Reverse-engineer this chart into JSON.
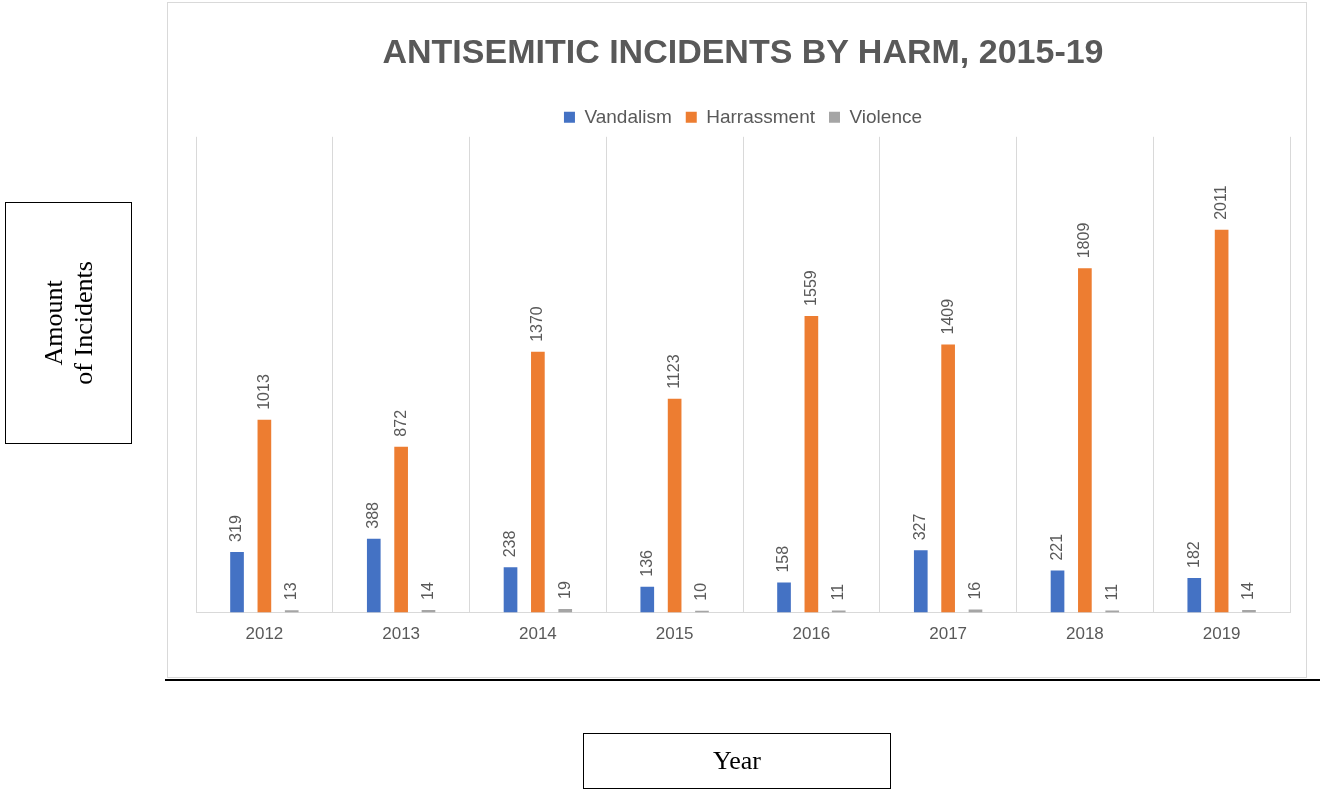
{
  "chart_data": {
    "type": "bar",
    "title": "ANTISEMITIC INCIDENTS BY HARM, 2015-19",
    "xlabel": "Year",
    "ylabel": "Amount of Incidents",
    "categories": [
      "2012",
      "2013",
      "2014",
      "2015",
      "2016",
      "2017",
      "2018",
      "2019"
    ],
    "series": [
      {
        "name": "Vandalism",
        "color": "#4472c4",
        "values": [
          319,
          388,
          238,
          136,
          158,
          327,
          221,
          182
        ]
      },
      {
        "name": "Harrassment",
        "color": "#ed7d31",
        "values": [
          1013,
          872,
          1370,
          1123,
          1559,
          1409,
          1809,
          2011
        ]
      },
      {
        "name": "Violence",
        "color": "#a5a5a5",
        "values": [
          13,
          14,
          19,
          10,
          11,
          16,
          11,
          14
        ]
      }
    ],
    "ylim": [
      0,
      2500
    ],
    "tick_labels": "x",
    "data_labels": true,
    "grid": "x",
    "legend": "top"
  }
}
